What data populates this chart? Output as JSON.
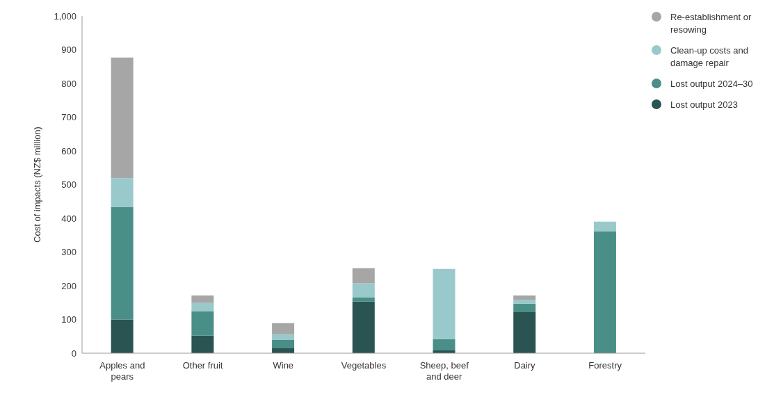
{
  "chart_data": {
    "type": "bar",
    "stacked": true,
    "ylabel": "Cost of impacts (NZ$ million)",
    "categories": [
      "Apples and pears",
      "Other fruit",
      "Wine",
      "Vegetables",
      "Sheep, beef and deer",
      "Dairy",
      "Forestry"
    ],
    "series": [
      {
        "name": "Lost output 2023",
        "color": "#2a5452",
        "values": [
          100,
          52,
          16,
          153,
          8,
          123,
          0
        ]
      },
      {
        "name": "Lost output 2024–30",
        "color": "#4a8f87",
        "values": [
          333,
          73,
          24,
          12,
          34,
          24,
          362
        ]
      },
      {
        "name": "Clean-up costs and damage repair",
        "color": "#9ac9cc",
        "values": [
          86,
          24,
          16,
          42,
          208,
          12,
          28
        ]
      },
      {
        "name": "Re-establishment or resowing",
        "color": "#a6a6a6",
        "values": [
          358,
          22,
          33,
          45,
          0,
          12,
          0
        ]
      }
    ],
    "ylim": [
      0,
      1000
    ],
    "yticks": [
      0,
      100,
      200,
      300,
      400,
      500,
      600,
      700,
      800,
      900,
      {
        "value": 1000,
        "label": "1,000"
      }
    ],
    "legend": "top right",
    "marker": "circle"
  }
}
